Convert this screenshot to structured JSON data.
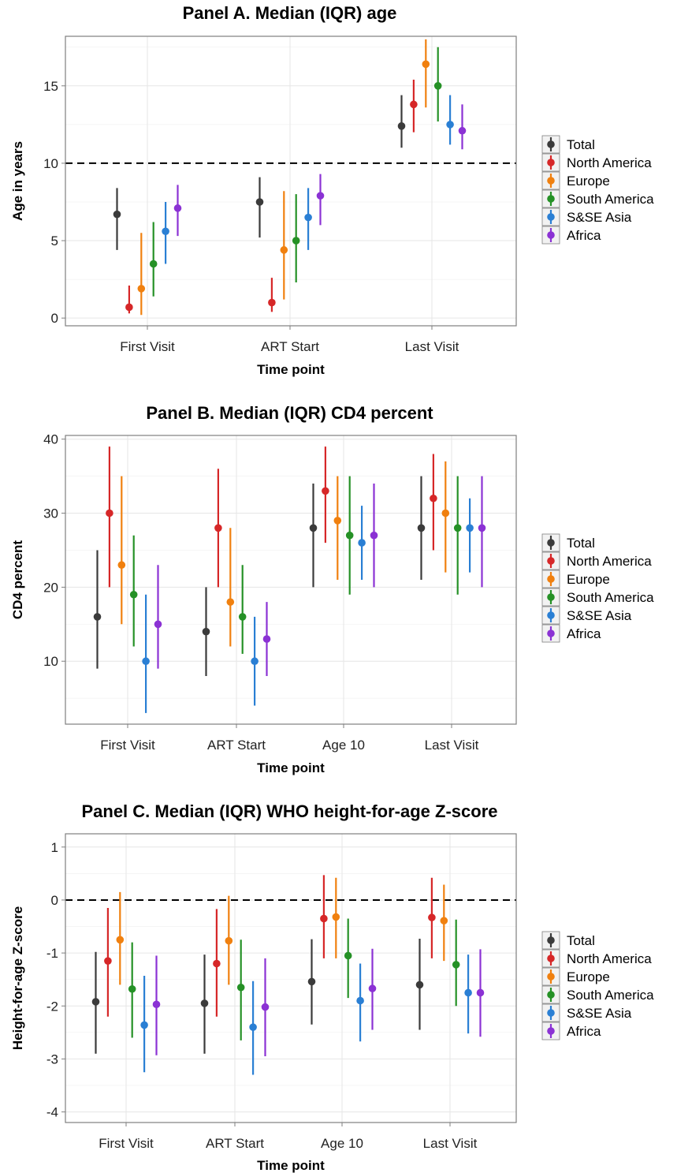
{
  "colors": {
    "Total": "#3b3b3b",
    "North America": "#d62728",
    "Europe": "#f0800f",
    "South America": "#259126",
    "S&SE Asia": "#2a7fd4",
    "Africa": "#8b32d4"
  },
  "chart_data": [
    {
      "type": "scatter",
      "title": "Panel A. Median (IQR) age",
      "xlabel": "Time point",
      "ylabel": "Age in years",
      "categories": [
        "First Visit",
        "ART Start",
        "Last Visit"
      ],
      "ylim": [
        -0.5,
        18.2
      ],
      "yticks": [
        0,
        5,
        10,
        15
      ],
      "reference_line": 10,
      "grid": true,
      "legend": "right",
      "series": [
        {
          "name": "Total",
          "median": [
            6.7,
            7.5,
            12.4
          ],
          "q1": [
            4.4,
            5.2,
            11.0
          ],
          "q3": [
            8.4,
            9.1,
            14.4
          ]
        },
        {
          "name": "North America",
          "median": [
            0.7,
            1.0,
            13.8
          ],
          "q1": [
            0.3,
            0.4,
            12.0
          ],
          "q3": [
            2.1,
            2.6,
            15.4
          ]
        },
        {
          "name": "Europe",
          "median": [
            1.9,
            4.4,
            16.4
          ],
          "q1": [
            0.2,
            1.2,
            13.6
          ],
          "q3": [
            5.5,
            8.2,
            18.0
          ]
        },
        {
          "name": "South America",
          "median": [
            3.5,
            5.0,
            15.0
          ],
          "q1": [
            1.4,
            2.3,
            12.7
          ],
          "q3": [
            6.2,
            8.0,
            17.5
          ]
        },
        {
          "name": "S&SE Asia",
          "median": [
            5.6,
            6.5,
            12.5
          ],
          "q1": [
            3.5,
            4.4,
            11.2
          ],
          "q3": [
            7.5,
            8.4,
            14.4
          ]
        },
        {
          "name": "Africa",
          "median": [
            7.1,
            7.9,
            12.1
          ],
          "q1": [
            5.3,
            6.0,
            10.9
          ],
          "q3": [
            8.6,
            9.3,
            13.8
          ]
        }
      ]
    },
    {
      "type": "scatter",
      "title": "Panel B. Median (IQR) CD4 percent",
      "xlabel": "Time point",
      "ylabel": "CD4 percent",
      "categories": [
        "First Visit",
        "ART Start",
        "Age 10",
        "Last Visit"
      ],
      "ylim": [
        1.5,
        40.5
      ],
      "yticks": [
        10,
        20,
        30,
        40
      ],
      "grid": true,
      "legend": "right",
      "series": [
        {
          "name": "Total",
          "median": [
            16,
            14,
            28,
            28
          ],
          "q1": [
            9,
            8,
            20,
            21
          ],
          "q3": [
            25,
            20,
            34,
            35
          ]
        },
        {
          "name": "North America",
          "median": [
            30,
            28,
            33,
            32
          ],
          "q1": [
            20,
            20,
            26,
            25
          ],
          "q3": [
            39,
            36,
            39,
            38
          ]
        },
        {
          "name": "Europe",
          "median": [
            23,
            18,
            29,
            30
          ],
          "q1": [
            15,
            12,
            21,
            22
          ],
          "q3": [
            35,
            28,
            35,
            37
          ]
        },
        {
          "name": "South America",
          "median": [
            19,
            16,
            27,
            28
          ],
          "q1": [
            12,
            11,
            19,
            19
          ],
          "q3": [
            27,
            23,
            35,
            35
          ]
        },
        {
          "name": "S&SE Asia",
          "median": [
            10,
            10,
            26,
            28
          ],
          "q1": [
            3,
            4,
            21,
            22
          ],
          "q3": [
            19,
            16,
            31,
            32
          ]
        },
        {
          "name": "Africa",
          "median": [
            15,
            13,
            27,
            28
          ],
          "q1": [
            9,
            8,
            20,
            20
          ],
          "q3": [
            23,
            18,
            34,
            35
          ]
        }
      ]
    },
    {
      "type": "scatter",
      "title": "Panel C. Median (IQR) WHO height-for-age Z-score",
      "xlabel": "Time point",
      "ylabel": "Height-for-age Z-score",
      "categories": [
        "First Visit",
        "ART Start",
        "Age 10",
        "Last Visit"
      ],
      "ylim": [
        -4.2,
        1.25
      ],
      "yticks": [
        -4,
        -3,
        -2,
        -1,
        0,
        1
      ],
      "reference_line": 0,
      "grid": true,
      "legend": "right",
      "series": [
        {
          "name": "Total",
          "median": [
            -1.92,
            -1.95,
            -1.54,
            -1.6
          ],
          "q1": [
            -2.9,
            -2.9,
            -2.35,
            -2.45
          ],
          "q3": [
            -0.98,
            -1.03,
            -0.74,
            -0.73
          ]
        },
        {
          "name": "North America",
          "median": [
            -1.15,
            -1.2,
            -0.35,
            -0.33
          ],
          "q1": [
            -2.2,
            -2.2,
            -1.1,
            -1.1
          ],
          "q3": [
            -0.15,
            -0.17,
            0.47,
            0.42
          ]
        },
        {
          "name": "Europe",
          "median": [
            -0.75,
            -0.77,
            -0.32,
            -0.39
          ],
          "q1": [
            -1.6,
            -1.6,
            -1.1,
            -1.15
          ],
          "q3": [
            0.15,
            0.08,
            0.42,
            0.29
          ]
        },
        {
          "name": "South America",
          "median": [
            -1.68,
            -1.65,
            -1.05,
            -1.22
          ],
          "q1": [
            -2.6,
            -2.65,
            -1.85,
            -2.0
          ],
          "q3": [
            -0.8,
            -0.75,
            -0.35,
            -0.37
          ]
        },
        {
          "name": "S&SE Asia",
          "median": [
            -2.36,
            -2.4,
            -1.9,
            -1.75
          ],
          "q1": [
            -3.25,
            -3.3,
            -2.67,
            -2.52
          ],
          "q3": [
            -1.43,
            -1.53,
            -1.2,
            -1.03
          ]
        },
        {
          "name": "Africa",
          "median": [
            -1.97,
            -2.02,
            -1.67,
            -1.75
          ],
          "q1": [
            -2.93,
            -2.95,
            -2.45,
            -2.58
          ],
          "q3": [
            -1.05,
            -1.1,
            -0.92,
            -0.93
          ]
        }
      ]
    }
  ]
}
